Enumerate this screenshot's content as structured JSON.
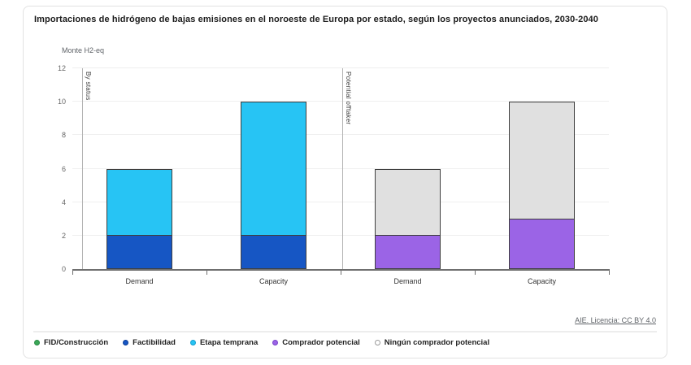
{
  "chart_data": {
    "type": "bar",
    "stacked": true,
    "title": "Importaciones de hidrógeno de bajas emisiones en el noroeste de Europa por estado, según los proyectos anunciados, 2030-2040",
    "unit_label": "Monte H2-eq",
    "source": "AIE. Licencia: CC BY 4.0",
    "ylim": [
      0,
      12
    ],
    "yticks": [
      0,
      2,
      4,
      6,
      8,
      10,
      12
    ],
    "grid": true,
    "legend_position": "bottom",
    "axis_color": "#6f6f6f",
    "gridline_color": "#efefef",
    "divider_color": "#b3b3b3",
    "bar_outline_color": "#3f3f3f",
    "groups": [
      {
        "label": "By status",
        "bars": [
          {
            "category": "Demand",
            "total": 6,
            "segments": [
              {
                "name": "Factibilidad",
                "value": 2,
                "color": "#1656c4"
              },
              {
                "name": "Etapa temprana",
                "value": 4,
                "color": "#27c4f4"
              }
            ]
          },
          {
            "category": "Capacity",
            "total": 10,
            "segments": [
              {
                "name": "Factibilidad",
                "value": 2,
                "color": "#1656c4"
              },
              {
                "name": "Etapa temprana",
                "value": 8,
                "color": "#27c4f4"
              }
            ]
          }
        ]
      },
      {
        "label": "Potential offtaker",
        "bars": [
          {
            "category": "Demand",
            "total": 6,
            "segments": [
              {
                "name": "Comprador potencial",
                "value": 2,
                "color": "#9b64e6"
              },
              {
                "name": "Ningún comprador potencial",
                "value": 4,
                "color": "#e0e0e0"
              }
            ]
          },
          {
            "category": "Capacity",
            "total": 10,
            "segments": [
              {
                "name": "Comprador potencial",
                "value": 3,
                "color": "#9b64e6"
              },
              {
                "name": "Ningún comprador potencial",
                "value": 7,
                "color": "#e0e0e0"
              }
            ]
          }
        ]
      }
    ],
    "legend": [
      {
        "label": "FID/Construcción",
        "color": "#3aa757",
        "ring": "#2a8a44"
      },
      {
        "label": "Factibilidad",
        "color": "#1656c4",
        "ring": "#0e3e96"
      },
      {
        "label": "Etapa temprana",
        "color": "#27c4f4",
        "ring": "#149fd0"
      },
      {
        "label": "Comprador potencial",
        "color": "#9b64e6",
        "ring": "#7b44c9"
      },
      {
        "label": "Ningún comprador potencial",
        "color": "#ffffff",
        "ring": "#9a9a9a"
      }
    ]
  }
}
